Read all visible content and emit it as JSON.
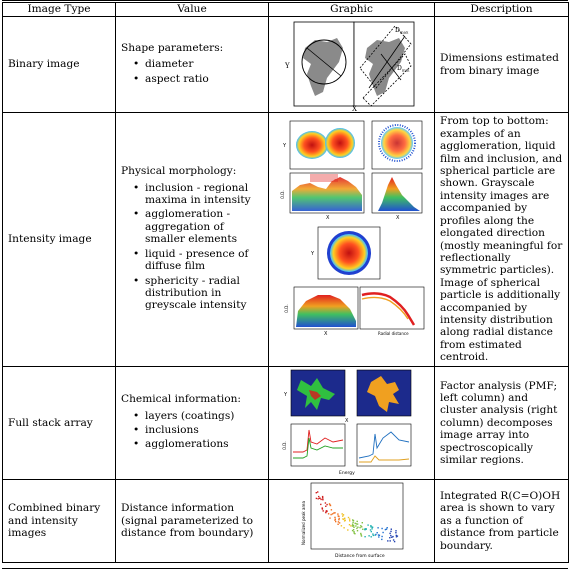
{
  "headers": [
    "Image Type",
    "Value",
    "Graphic",
    "Description"
  ],
  "rows": [
    {
      "type": "Binary image",
      "value_head": "Shape parameters:",
      "value_items": [
        "diameter",
        "aspect ratio"
      ],
      "description": "Dimensions estimated from binary image",
      "graphic_labels": {
        "y": "Y",
        "x": "X",
        "dmax": "D",
        "dmax_sub": "max",
        "dmin": "D",
        "dmin_sub": "min"
      }
    },
    {
      "type": "Intensity image",
      "value_head": "Physical morphology:",
      "value_items": [
        "inclusion - regional maxima in intensity",
        "agglomeration - aggregation of smaller elements",
        "liquid - presence of diffuse film",
        "sphericity - radial distribution in greyscale intensity"
      ],
      "description": "From top to bottom: examples of an agglomeration, liquid film and inclusion, and spherical particle are shown. Grayscale intensity images are accompanied by profiles along the elongated direction (mostly meaningful for reflectionally symmetric particles). Image of spherical particle is additionally accompanied by intensity distribution along radial distance from estimated centroid.",
      "graphic_labels": {
        "y": "Y",
        "x": "X",
        "od": "O.D.",
        "radial": "Radial distance"
      }
    },
    {
      "type": "Full stack array",
      "value_head": "Chemical information:",
      "value_items": [
        "layers (coatings)",
        "inclusions",
        "agglomerations"
      ],
      "description": "Factor analysis (PMF; left column) and cluster analysis (right column) decomposes image array into spectroscopically similar regions.",
      "graphic_labels": {
        "y": "Y",
        "x": "X",
        "od": "O.D.",
        "energy": "Energy"
      }
    },
    {
      "type": "Combined binary and intensity images",
      "value_head": "Distance information (signal parameterized to distance from boundary)",
      "value_items": [],
      "description": "Integrated R(C=O)OH area is shown to vary as a function of distance from particle boundary.",
      "graphic_labels": {
        "ylabel": "Normalized peak area",
        "xlabel": "Distance from surface"
      }
    }
  ],
  "colors": {
    "line_red": "#e02020",
    "line_green": "#20a020",
    "line_blue": "#2070c0",
    "line_orange": "#e0a020",
    "map_bg": "#1c2a8c"
  }
}
